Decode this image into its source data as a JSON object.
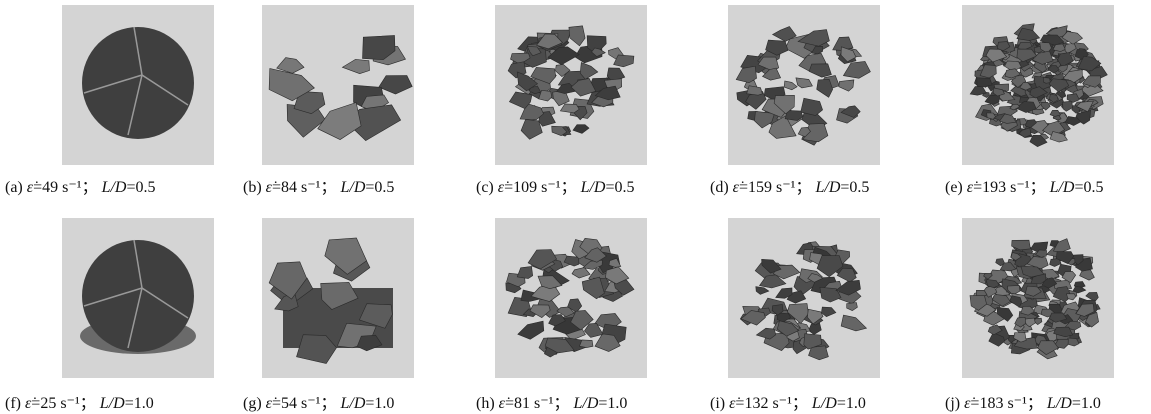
{
  "panels": [
    {
      "id": "(a)",
      "symbol": "ε̇",
      "rate": "=49 s⁻¹；",
      "var": "L/D",
      "ratio": "=0.5"
    },
    {
      "id": "(b)",
      "symbol": "ε̇",
      "rate": "=84 s⁻¹；",
      "var": "L/D",
      "ratio": "=0.5"
    },
    {
      "id": "(c)",
      "symbol": "ε̇",
      "rate": "=109 s⁻¹；",
      "var": "L/D",
      "ratio": "=0.5"
    },
    {
      "id": "(d)",
      "symbol": "ε̇",
      "rate": "=159 s⁻¹；",
      "var": "L/D",
      "ratio": "=0.5"
    },
    {
      "id": "(e)",
      "symbol": "ε̇",
      "rate": "=193 s⁻¹；",
      "var": "L/D",
      "ratio": "=0.5"
    },
    {
      "id": "(f)",
      "symbol": "ε̇",
      "rate": "=25 s⁻¹；",
      "var": "L/D",
      "ratio": "=1.0"
    },
    {
      "id": "(g)",
      "symbol": "ε̇",
      "rate": "=54 s⁻¹；",
      "var": "L/D",
      "ratio": "=1.0"
    },
    {
      "id": "(h)",
      "symbol": "ε̇",
      "rate": "=81 s⁻¹；",
      "var": "L/D",
      "ratio": "=1.0"
    },
    {
      "id": "(i)",
      "symbol": "ε̇",
      "rate": "=132 s⁻¹；",
      "var": "L/D",
      "ratio": "=1.0"
    },
    {
      "id": "(j)",
      "symbol": "ε̇",
      "rate": "=183 s⁻¹；",
      "var": "L/D",
      "ratio": "=1.0"
    }
  ]
}
